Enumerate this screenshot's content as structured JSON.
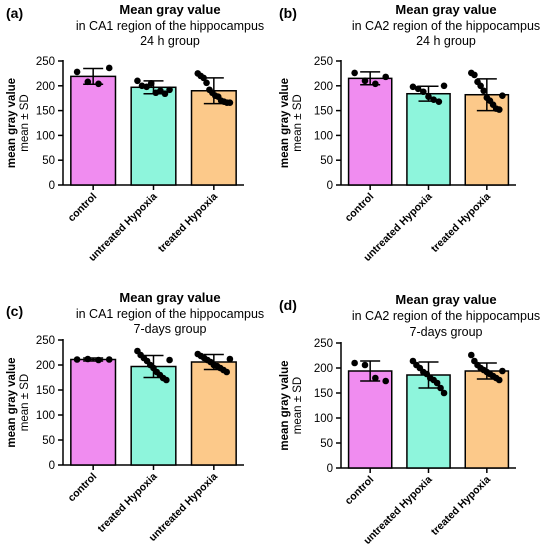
{
  "chart_data": [
    {
      "type": "bar",
      "panel_label": "(a)",
      "title": "Mean gray value",
      "subtitle": "in CA1 region of the hippocampus",
      "group": "24 h group",
      "ylabel": "mean gray value",
      "ylabel_sub": "mean ± SD",
      "ylim": [
        0,
        250
      ],
      "yticks": [
        0,
        50,
        100,
        150,
        200,
        250
      ],
      "categories": [
        "control",
        "untreated Hypoxia",
        "treated Hypoxia"
      ],
      "colors": [
        "#f08cf0",
        "#8ef5dc",
        "#fcc98a"
      ],
      "values": [
        219,
        197,
        190
      ],
      "sd": [
        16,
        13,
        26
      ],
      "points": [
        [
          228,
          208,
          204,
          236
        ],
        [
          210,
          200,
          198,
          205,
          186,
          190,
          184,
          192
        ],
        [
          225,
          220,
          216,
          206,
          192,
          186,
          180,
          178,
          170,
          168,
          166,
          166
        ]
      ]
    },
    {
      "type": "bar",
      "panel_label": "(b)",
      "title": "Mean gray value",
      "subtitle": "in CA2 region of the hippocampus",
      "group": "24 h group",
      "ylabel": "mean gray value",
      "ylabel_sub": "mean ± SD",
      "ylim": [
        0,
        250
      ],
      "yticks": [
        0,
        50,
        100,
        150,
        200,
        250
      ],
      "categories": [
        "control",
        "untreated Hypoxia",
        "treated Hypoxia"
      ],
      "colors": [
        "#f08cf0",
        "#8ef5dc",
        "#fcc98a"
      ],
      "values": [
        215,
        184,
        182
      ],
      "sd": [
        13,
        15,
        32
      ],
      "points": [
        [
          226,
          210,
          204,
          218
        ],
        [
          198,
          194,
          188,
          178,
          172,
          168,
          200
        ],
        [
          226,
          222,
          208,
          200,
          190,
          176,
          170,
          162,
          154,
          152,
          180
        ]
      ]
    },
    {
      "type": "bar",
      "panel_label": "(c)",
      "title": "Mean gray value",
      "subtitle": "in CA1 region of the hippocampus",
      "group": "7-days group",
      "ylabel": "mean gray value",
      "ylabel_sub": "mean ± SD",
      "ylim": [
        0,
        250
      ],
      "yticks": [
        0,
        50,
        100,
        150,
        200,
        250
      ],
      "categories": [
        "control",
        "treated Hypoxia",
        "untreated Hypoxia"
      ],
      "colors": [
        "#f08cf0",
        "#8ef5dc",
        "#fcc98a"
      ],
      "values": [
        211,
        197,
        206
      ],
      "sd": [
        3,
        22,
        15
      ],
      "points": [
        [
          211,
          212,
          210,
          211
        ],
        [
          228,
          220,
          214,
          208,
          200,
          194,
          186,
          180,
          174,
          170,
          210
        ],
        [
          222,
          218,
          214,
          210,
          206,
          200,
          198,
          194,
          190,
          186,
          212
        ]
      ]
    },
    {
      "type": "bar",
      "panel_label": "(d)",
      "title": "Mean gray value",
      "subtitle": "in CA2 region of the hippocampus",
      "group": "7-days group",
      "ylabel": "mean gray value",
      "ylabel_sub": "mean ± SD",
      "ylim": [
        0,
        250
      ],
      "yticks": [
        0,
        50,
        100,
        150,
        200,
        250
      ],
      "categories": [
        "control",
        "untreated Hypoxia",
        "treated Hypoxia"
      ],
      "colors": [
        "#f08cf0",
        "#8ef5dc",
        "#fcc98a"
      ],
      "values": [
        194,
        186,
        194
      ],
      "sd": [
        20,
        26,
        16
      ],
      "points": [
        [
          210,
          206,
          180,
          174
        ],
        [
          214,
          206,
          200,
          192,
          188,
          180,
          176,
          170,
          160,
          150
        ],
        [
          226,
          214,
          206,
          200,
          196,
          192,
          188,
          184,
          180,
          176,
          194
        ]
      ]
    }
  ]
}
